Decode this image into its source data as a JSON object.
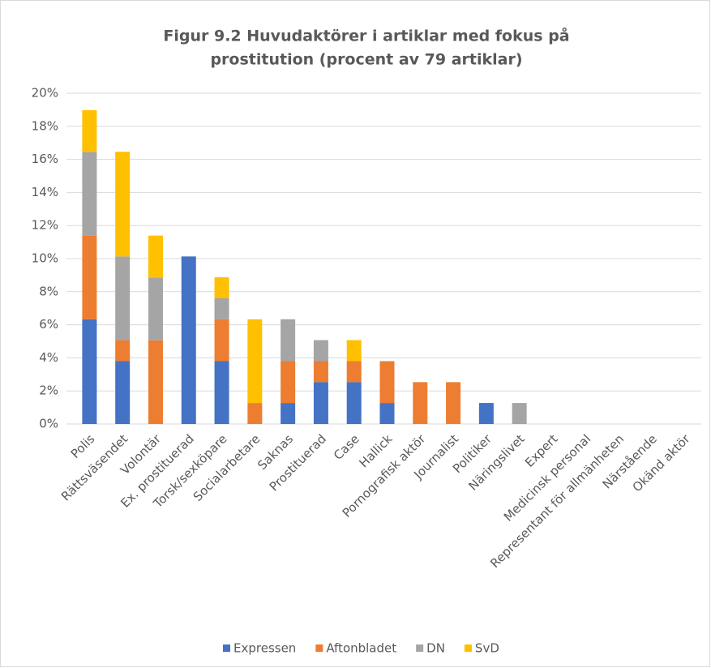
{
  "chart_data": {
    "type": "stacked_bar",
    "title": [
      "Figur 9.2 Huvudaktörer  i artiklar med fokus på",
      "prostitution  (procent av 79 artiklar)"
    ],
    "categories": [
      "Polis",
      "Rättsväsendet",
      "Volontär",
      "Ex. prostituerad",
      "Torsk/sexköpare",
      "Socialarbetare",
      "Saknas",
      "Prostituerad",
      "Case",
      "Hallick",
      "Pornografisk aktör",
      "Journalist",
      "Politiker",
      "Näringslivet",
      "Expert",
      "Medicinsk personal",
      "Representant för allmänheten",
      "Närstående",
      "Okänd aktör"
    ],
    "series": [
      {
        "name": "Expressen",
        "color": "#4472c4",
        "values": [
          6.33,
          3.8,
          0,
          10.13,
          3.8,
          0,
          1.27,
          2.53,
          2.53,
          1.27,
          0,
          0,
          1.27,
          0,
          0,
          0,
          0,
          0,
          0
        ]
      },
      {
        "name": "Aftonbladet",
        "color": "#ed7d31",
        "values": [
          5.06,
          1.27,
          5.06,
          0,
          2.53,
          1.27,
          2.53,
          1.27,
          1.27,
          2.53,
          2.53,
          2.53,
          0,
          0,
          0,
          0,
          0,
          0,
          0
        ]
      },
      {
        "name": "DN",
        "color": "#a5a5a5",
        "values": [
          5.06,
          5.06,
          3.8,
          0,
          1.27,
          0,
          2.53,
          1.27,
          0,
          0,
          0,
          0,
          0,
          1.27,
          0,
          0,
          0,
          0,
          0
        ]
      },
      {
        "name": "SvD",
        "color": "#ffc000",
        "values": [
          2.53,
          6.33,
          2.53,
          0,
          1.27,
          5.06,
          0,
          0,
          1.27,
          0,
          0,
          0,
          0,
          0,
          0,
          0,
          0,
          0,
          0
        ]
      }
    ],
    "ylim": [
      0,
      20
    ],
    "yticks": [
      {
        "value": 0,
        "label": "0%"
      },
      {
        "value": 2,
        "label": "2%"
      },
      {
        "value": 4,
        "label": "4%"
      },
      {
        "value": 6,
        "label": "6%"
      },
      {
        "value": 8,
        "label": "8%"
      },
      {
        "value": 10,
        "label": "10%"
      },
      {
        "value": 12,
        "label": "12%"
      },
      {
        "value": 14,
        "label": "14%"
      },
      {
        "value": 16,
        "label": "16%"
      },
      {
        "value": 18,
        "label": "18%"
      },
      {
        "value": 20,
        "label": "20%"
      }
    ],
    "grid": true,
    "legend": "bottom"
  }
}
